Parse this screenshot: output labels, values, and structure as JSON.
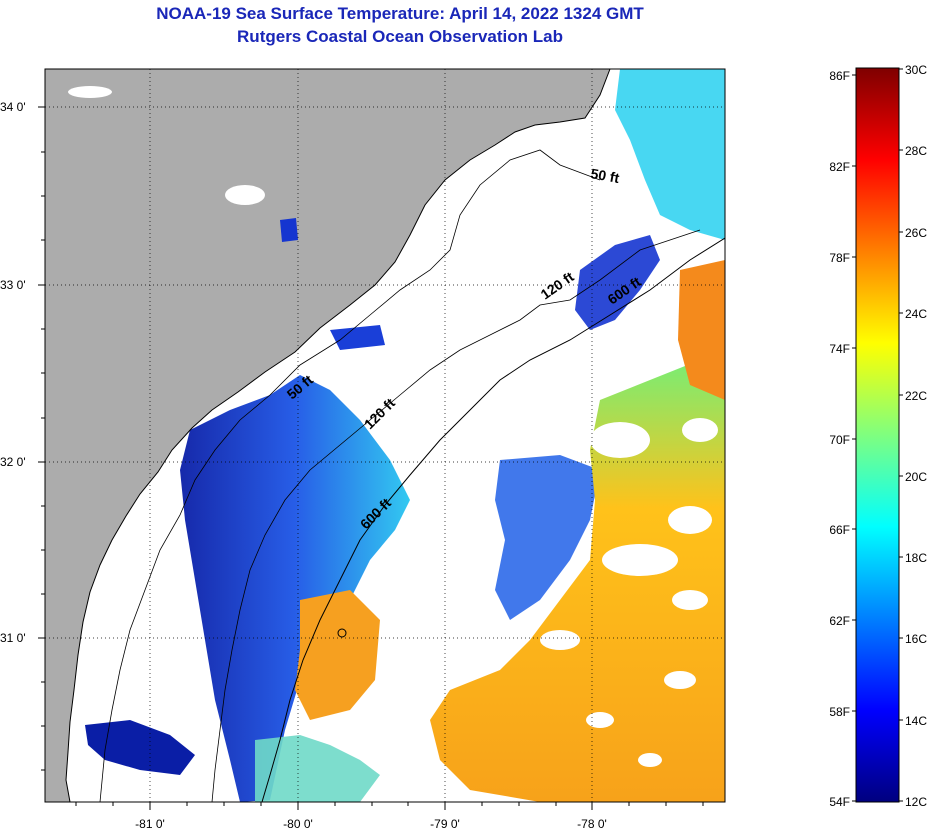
{
  "header": {
    "title_line1": "NOAA-19 Sea Surface Temperature:  April 14, 2022 1324 GMT",
    "title_line2": "Rutgers Coastal Ocean Observation Lab"
  },
  "map": {
    "lat_labels": [
      "34 0'",
      "33 0'",
      "32 0'",
      "31 0'"
    ],
    "lon_labels": [
      "-81 0'",
      "-80 0'",
      "-79 0'",
      "-78 0'"
    ],
    "contour_labels": [
      "50 ft",
      "120 ft",
      "600 ft",
      "50 ft",
      "120 ft",
      "600 ft"
    ],
    "colors": {
      "land": "#acacac",
      "cloud": "#ffffff",
      "cold": "#0a1ea6",
      "warm": "#f7a21a"
    }
  },
  "colorbar": {
    "fahrenheit_labels": [
      "86F",
      "82F",
      "78F",
      "74F",
      "70F",
      "66F",
      "62F",
      "58F",
      "54F"
    ],
    "celsius_labels": [
      "30C",
      "28C",
      "26C",
      "24C",
      "22C",
      "20C",
      "18C",
      "16C",
      "14C",
      "12C"
    ]
  }
}
